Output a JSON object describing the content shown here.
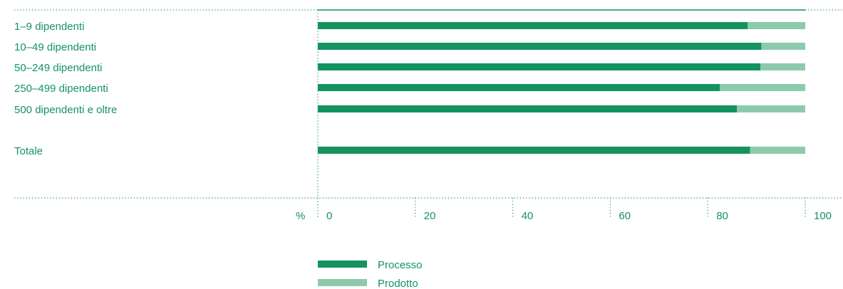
{
  "colors": {
    "processo": "#14935f",
    "prodotto": "#8ccaaa",
    "text": "#14935f",
    "grid": "#14935f"
  },
  "chart_data": {
    "type": "bar",
    "orientation": "horizontal",
    "stacked": true,
    "categories": [
      "1–9 dipendenti",
      "10–49 dipendenti",
      "50–249 dipendenti",
      "250–499 dipendenti",
      "500 dipendenti e oltre",
      "Totale"
    ],
    "series": [
      {
        "name": "Processo",
        "values": [
          88.2,
          91.0,
          90.8,
          82.5,
          86.0,
          88.7
        ]
      },
      {
        "name": "Prodotto",
        "values": [
          11.8,
          9.0,
          9.2,
          17.5,
          14.0,
          11.3
        ]
      }
    ],
    "xlim": [
      0,
      100
    ],
    "xticks": [
      "0",
      "20",
      "40",
      "60",
      "80",
      "100"
    ],
    "unit_label": "%",
    "title": "",
    "xlabel": "",
    "ylabel": "",
    "legend_position": "bottom"
  }
}
